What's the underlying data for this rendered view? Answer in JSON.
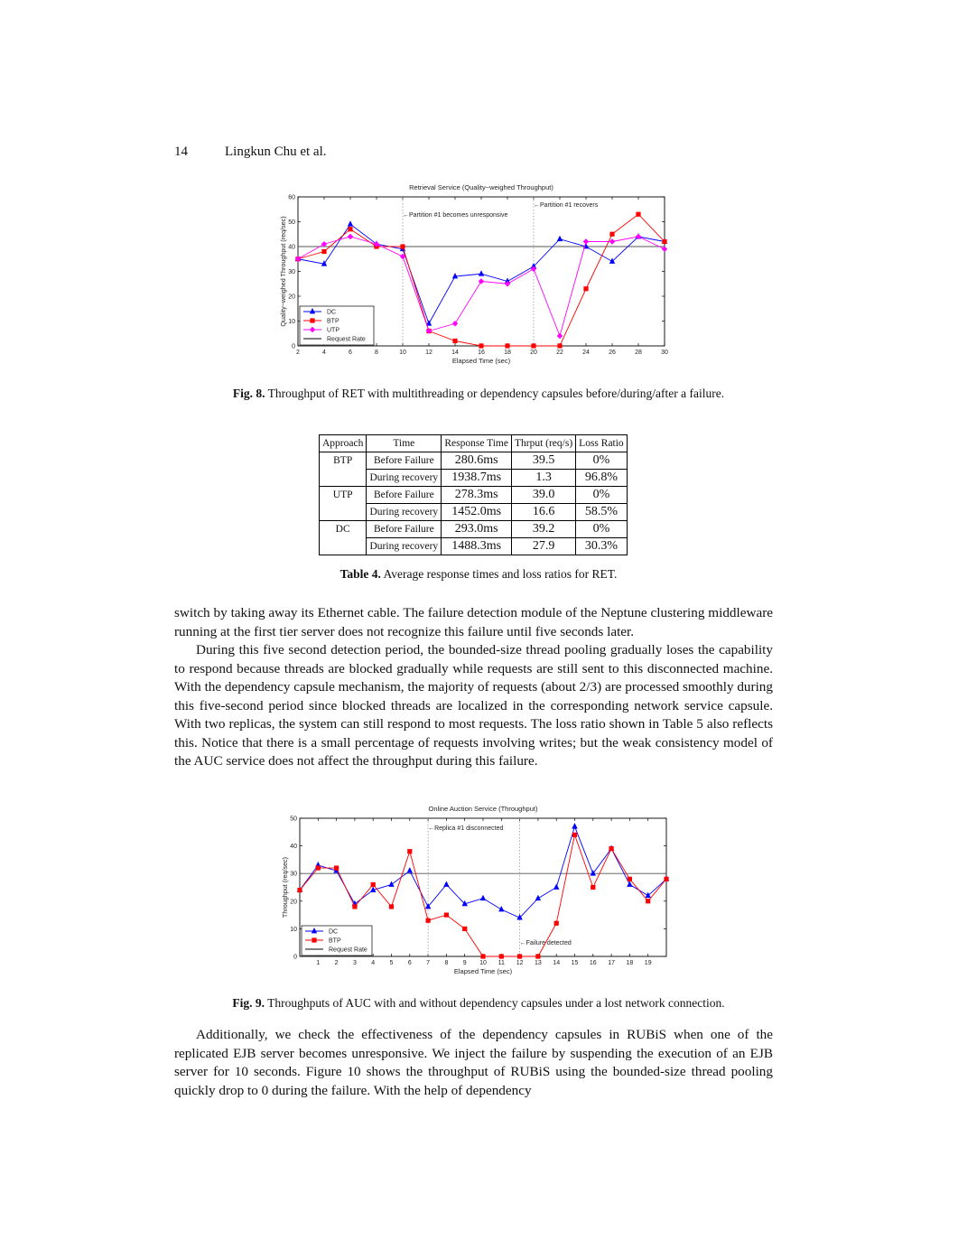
{
  "header": {
    "page_number": "14",
    "authors": "Lingkun Chu et al."
  },
  "fig8": {
    "caption_label": "Fig. 8.",
    "caption_text": "Throughput of RET with multithreading or dependency capsules before/during/after a failure."
  },
  "table4": {
    "caption_label": "Table 4.",
    "caption_text": "Average response times and loss ratios for RET.",
    "headers": [
      "Approach",
      "Time",
      "Response Time",
      "Thrput (req/s)",
      "Loss Ratio"
    ],
    "rows": [
      {
        "approach": "BTP",
        "time": "Before Failure",
        "response": "280.6ms",
        "thrput": "39.5",
        "loss": "0%"
      },
      {
        "approach": "",
        "time": "During recovery",
        "response": "1938.7ms",
        "thrput": "1.3",
        "loss": "96.8%"
      },
      {
        "approach": "UTP",
        "time": "Before Failure",
        "response": "278.3ms",
        "thrput": "39.0",
        "loss": "0%"
      },
      {
        "approach": "",
        "time": "During recovery",
        "response": "1452.0ms",
        "thrput": "16.6",
        "loss": "58.5%"
      },
      {
        "approach": "DC",
        "time": "Before Failure",
        "response": "293.0ms",
        "thrput": "39.2",
        "loss": "0%"
      },
      {
        "approach": "",
        "time": "During recovery",
        "response": "1488.3ms",
        "thrput": "27.9",
        "loss": "30.3%"
      }
    ]
  },
  "body": {
    "para1": "switch by taking away its Ethernet cable. The failure detection module of the Neptune clustering middleware running at the first tier server does not recognize this failure until five seconds later.",
    "para2": "During this five second detection period, the bounded-size thread pooling gradually loses the capability to respond because threads are blocked gradually while requests are still sent to this disconnected machine. With the dependency capsule mechanism, the majority of requests (about 2/3) are processed smoothly during this five-second period since blocked threads are localized in the corresponding network service capsule. With two replicas, the system can still respond to most requests. The loss ratio shown in Table 5 also reflects this. Notice that there is a small percentage of requests involving writes; but the weak consistency model of the AUC service does not affect the throughput during this failure.",
    "para3": "Additionally, we check the effectiveness of the dependency capsules in RUBiS when one of the replicated EJB server becomes unresponsive. We inject the failure by suspending the execution of an EJB server for 10 seconds. Figure 10 shows the throughput of RUBiS using the bounded-size thread pooling quickly drop to 0 during the failure. With the help of dependency"
  },
  "fig9": {
    "caption_label": "Fig. 9.",
    "caption_text": "Throughputs of AUC with and without dependency capsules under a lost network connection."
  },
  "chart_data": [
    {
      "type": "line",
      "title": "Retrieval Service (Quality−weighed Throughput)",
      "xlabel": "Elapsed Time (sec)",
      "ylabel": "Quality−weighed Throughput (req/sec)",
      "xlim": [
        2,
        30
      ],
      "ylim": [
        0,
        60
      ],
      "xticks": [
        2,
        4,
        6,
        8,
        10,
        12,
        14,
        16,
        18,
        20,
        22,
        24,
        26,
        28,
        30
      ],
      "yticks": [
        0,
        10,
        20,
        30,
        40,
        50,
        60
      ],
      "grid": false,
      "legend_position": "bottom-left",
      "x": [
        2,
        4,
        6,
        8,
        10,
        12,
        14,
        16,
        18,
        20,
        22,
        24,
        26,
        28,
        30
      ],
      "series": [
        {
          "name": "DC",
          "color": "#0000ff",
          "marker": "triangle",
          "values": [
            35,
            33,
            49,
            41,
            39,
            9,
            28,
            29,
            26,
            32,
            43,
            40,
            34,
            44,
            42
          ]
        },
        {
          "name": "BTP",
          "color": "#ff0000",
          "marker": "square",
          "values": [
            35,
            38,
            47,
            40,
            40,
            6,
            2,
            0,
            0,
            0,
            0,
            23,
            45,
            53,
            42
          ]
        },
        {
          "name": "UTP",
          "color": "#ff00ff",
          "marker": "diamond",
          "values": [
            35,
            41,
            44,
            41,
            36,
            6,
            9,
            26,
            25,
            31,
            4,
            42,
            42,
            44,
            39
          ]
        }
      ],
      "reference_line": {
        "name": "Request Rate",
        "value": 40,
        "color": "#555555"
      },
      "annotations": [
        {
          "text": "←Partition #1 becomes unresponsive",
          "x": 10
        },
        {
          "text": "←Partition #1 recovers",
          "x": 20
        }
      ]
    },
    {
      "type": "line",
      "title": "Online Auction Service (Throughput)",
      "xlabel": "Elapsed Time (sec)",
      "ylabel": "Throughput (req/sec)",
      "xlim": [
        0,
        20
      ],
      "ylim": [
        0,
        50
      ],
      "xticks": [
        1,
        2,
        3,
        4,
        5,
        6,
        7,
        8,
        9,
        10,
        11,
        12,
        13,
        14,
        15,
        16,
        17,
        18,
        19
      ],
      "yticks": [
        0,
        10,
        20,
        30,
        40,
        50
      ],
      "grid": false,
      "legend_position": "bottom-left",
      "series": [
        {
          "name": "DC",
          "color": "#0000ff",
          "marker": "triangle",
          "x": [
            0,
            1,
            2,
            3,
            4,
            5,
            6,
            7,
            8,
            9,
            10,
            11,
            12,
            13,
            14,
            15,
            16,
            17,
            18,
            19,
            20
          ],
          "values": [
            24,
            33,
            31,
            19,
            24,
            26,
            31,
            18,
            26,
            19,
            21,
            17,
            14,
            21,
            25,
            47,
            30,
            39,
            26,
            22,
            28
          ]
        },
        {
          "name": "BTP",
          "color": "#ff0000",
          "marker": "square",
          "x": [
            0,
            1,
            2,
            3,
            4,
            5,
            6,
            7,
            8,
            9,
            10,
            11,
            12,
            13,
            14,
            15,
            16,
            17,
            18,
            19,
            20
          ],
          "values": [
            24,
            32,
            32,
            18,
            26,
            18,
            38,
            13,
            15,
            10,
            0,
            0,
            0,
            0,
            12,
            44,
            25,
            39,
            28,
            20,
            28
          ]
        }
      ],
      "reference_line": {
        "name": "Request Rate",
        "value": 30,
        "color": "#555555"
      },
      "annotations": [
        {
          "text": "←Replica #1 disconnected",
          "x": 7
        },
        {
          "text": "←Failure detected",
          "x": 12
        }
      ]
    }
  ]
}
